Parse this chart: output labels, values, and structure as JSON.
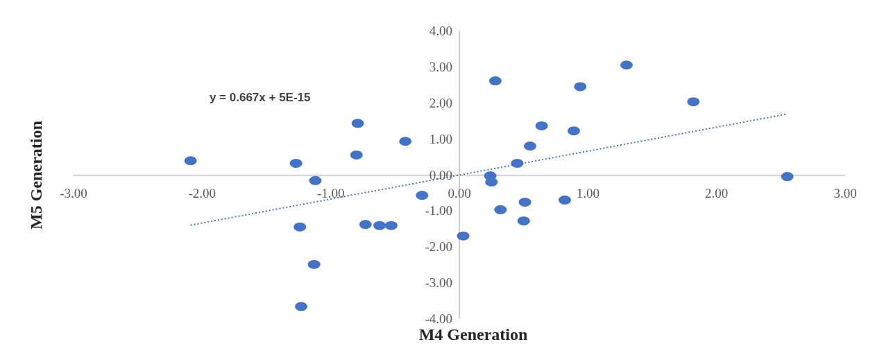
{
  "chart_data": {
    "type": "scatter",
    "xlabel": "M4 Generation",
    "ylabel": "M5 Generation",
    "xlim": [
      -3,
      3
    ],
    "ylim": [
      -4,
      4
    ],
    "xticks": [
      {
        "value": -3,
        "label": "-3.00"
      },
      {
        "value": -2,
        "label": "-2.00"
      },
      {
        "value": -1,
        "label": "-1.00"
      },
      {
        "value": 0,
        "label": "0.00"
      },
      {
        "value": 1,
        "label": "1.00"
      },
      {
        "value": 2,
        "label": "2.00"
      },
      {
        "value": 3,
        "label": "3.00"
      }
    ],
    "yticks": [
      {
        "value": -4,
        "label": "-4.00"
      },
      {
        "value": -3,
        "label": "-3.00"
      },
      {
        "value": -2,
        "label": "-2.00"
      },
      {
        "value": -1,
        "label": "-1.00"
      },
      {
        "value": 0,
        "label": "0.00"
      },
      {
        "value": 1,
        "label": "1.00"
      },
      {
        "value": 2,
        "label": "2.00"
      },
      {
        "value": 3,
        "label": "3.00"
      },
      {
        "value": 4,
        "label": "4.00"
      }
    ],
    "grid": false,
    "marker": "circle",
    "annotations": [
      "y = 0.667x + 5E-15"
    ],
    "series": [
      {
        "color": "#4472c4",
        "x": [
          -2.09,
          -1.27,
          -1.12,
          -1.24,
          -1.13,
          -1.23,
          -0.79,
          -0.8,
          -0.73,
          -0.62,
          -0.53,
          -0.42,
          -0.29,
          0.03,
          0.24,
          0.25,
          0.28,
          0.32,
          0.45,
          0.5,
          0.51,
          0.55,
          0.64,
          0.82,
          0.89,
          0.94,
          1.3,
          1.82,
          2.55
        ],
        "values": [
          0.4,
          0.33,
          -0.15,
          -1.44,
          -2.48,
          -3.65,
          1.44,
          0.56,
          -1.37,
          -1.4,
          -1.4,
          0.94,
          -0.56,
          -1.69,
          -0.02,
          -0.19,
          2.62,
          -0.96,
          0.33,
          -1.27,
          -0.75,
          0.81,
          1.37,
          -0.69,
          1.23,
          2.46,
          3.06,
          2.04,
          -0.04
        ]
      },
      {
        "type": "line",
        "color": "#4472c4",
        "line_style": "dotted",
        "marker": "none",
        "x": [
          -2.09,
          2.55
        ],
        "values": [
          -1.39,
          1.7
        ]
      }
    ]
  }
}
